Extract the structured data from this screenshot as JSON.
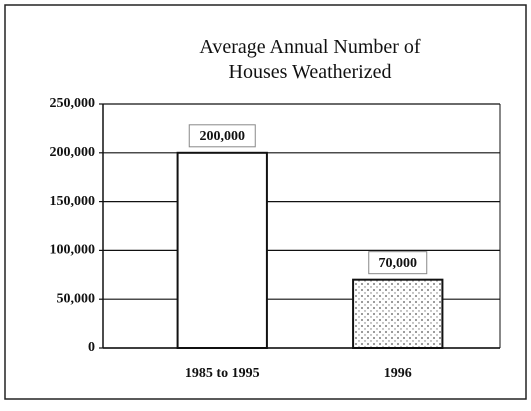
{
  "chart_data": {
    "type": "bar",
    "title": "Average Annual Number of Houses Weatherized",
    "categories": [
      "1985 to 1995",
      "1996"
    ],
    "values": [
      200000,
      70000
    ],
    "value_labels": [
      "200,000",
      "70,000"
    ],
    "colors": [
      "#ffffff",
      "#d8d8d8"
    ],
    "ylim": [
      0,
      250000
    ],
    "yticks": [
      0,
      {
        "value": 50000,
        "label": "50,000"
      },
      {
        "value": 100000,
        "label": "100,000"
      },
      {
        "value": 150000,
        "label": "150,000"
      },
      {
        "value": 200000,
        "label": "200,000"
      },
      {
        "value": 250000,
        "label": "250,000"
      }
    ],
    "grid": true
  }
}
